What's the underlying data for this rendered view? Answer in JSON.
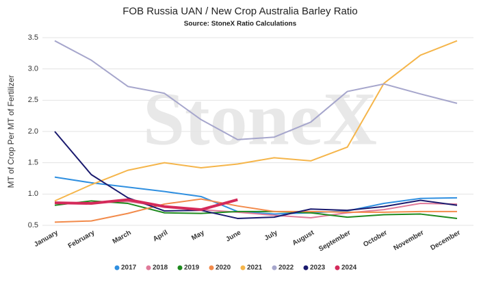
{
  "chart_data": {
    "type": "line",
    "title": "FOB Russia UAN / New Crop Australia Barley Ratio",
    "subtitle": "Source: StoneX Ratio Calculations",
    "watermark": "StoneX",
    "y_label": "MT of Crop Per MT of Fertilizer",
    "categories": [
      "January",
      "February",
      "March",
      "April",
      "May",
      "June",
      "July",
      "August",
      "September",
      "October",
      "November",
      "December"
    ],
    "ylim": [
      0.5,
      3.5
    ],
    "yticks": [
      0.5,
      {
        "value": 1,
        "label": "1.0"
      },
      1.5,
      {
        "value": 2,
        "label": "2.0"
      },
      2.5,
      {
        "value": 3,
        "label": "3.0"
      },
      3.5
    ],
    "grid": true,
    "legend": "bottom",
    "series": [
      {
        "name": "2017",
        "color": "#2f8fe0",
        "values": [
          1.27,
          1.18,
          1.11,
          1.04,
          0.96,
          0.72,
          0.68,
          0.7,
          0.73,
          0.85,
          0.93,
          0.94
        ]
      },
      {
        "name": "2018",
        "color": "#e07a9a",
        "values": [
          0.85,
          0.86,
          0.88,
          0.8,
          0.75,
          0.71,
          0.66,
          0.62,
          0.7,
          0.75,
          0.85,
          0.84
        ]
      },
      {
        "name": "2019",
        "color": "#1e8a1e",
        "values": [
          0.82,
          0.89,
          0.85,
          0.7,
          0.69,
          0.72,
          0.72,
          0.7,
          0.63,
          0.67,
          0.68,
          0.61
        ]
      },
      {
        "name": "2020",
        "color": "#f28a4a",
        "values": [
          0.55,
          0.57,
          0.69,
          0.84,
          0.92,
          0.81,
          0.72,
          0.72,
          0.71,
          0.71,
          0.72,
          0.72
        ]
      },
      {
        "name": "2021",
        "color": "#f5b54a",
        "values": [
          0.89,
          1.15,
          1.38,
          1.5,
          1.42,
          1.48,
          1.58,
          1.53,
          1.75,
          2.77,
          3.22,
          3.45
        ]
      },
      {
        "name": "2022",
        "color": "#a6a6cc",
        "values": [
          3.45,
          3.14,
          2.72,
          2.61,
          2.19,
          1.87,
          1.91,
          2.15,
          2.64,
          2.76,
          2.6,
          2.45
        ]
      },
      {
        "name": "2023",
        "color": "#1a1a6e",
        "values": [
          2.0,
          1.31,
          0.94,
          0.73,
          0.74,
          0.61,
          0.63,
          0.76,
          0.74,
          0.8,
          0.9,
          0.82
        ]
      },
      {
        "name": "2024",
        "color": "#d42a5a",
        "values": [
          0.86,
          0.85,
          0.91,
          0.8,
          0.75,
          0.91,
          null,
          null,
          null,
          null,
          null,
          null
        ]
      }
    ]
  }
}
